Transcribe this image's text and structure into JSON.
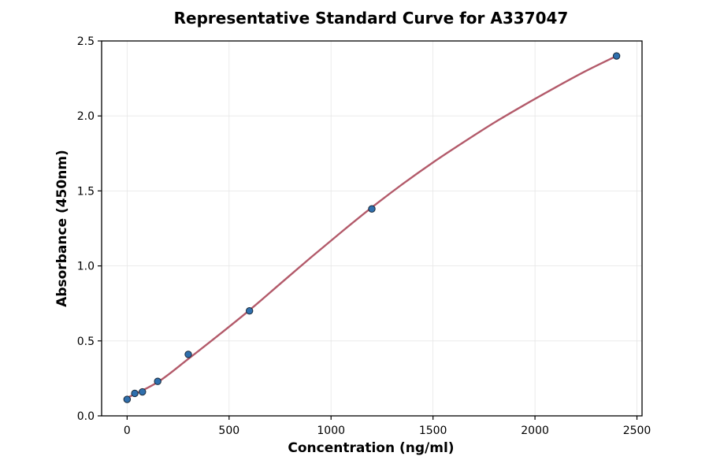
{
  "chart_data": {
    "type": "scatter",
    "title": "Representative Standard Curve for A337047",
    "xlabel": "Concentration (ng/ml)",
    "ylabel": "Absorbance (450nm)",
    "xlim": [
      -125,
      2525
    ],
    "ylim": [
      0,
      2.5
    ],
    "x_ticks": [
      0,
      500,
      1000,
      1500,
      2000,
      2500
    ],
    "y_ticks": [
      0.0,
      0.5,
      1.0,
      1.5,
      2.0,
      2.5
    ],
    "x_tick_labels": [
      "0",
      "500",
      "1000",
      "1500",
      "2000",
      "2500"
    ],
    "y_tick_labels": [
      "0.0",
      "0.5",
      "1.0",
      "1.5",
      "2.0",
      "2.5"
    ],
    "grid": true,
    "series": [
      {
        "kind": "points",
        "x": [
          0,
          37.5,
          75,
          150,
          300,
          600,
          1200,
          2400
        ],
        "y": [
          0.11,
          0.15,
          0.16,
          0.23,
          0.41,
          0.7,
          1.38,
          2.4
        ]
      },
      {
        "kind": "fit-curve",
        "x": [
          0,
          150,
          300,
          450,
          600,
          750,
          900,
          1050,
          1200,
          1350,
          1500,
          1650,
          1800,
          1950,
          2100,
          2250,
          2400
        ],
        "y": [
          0.12,
          0.225,
          0.38,
          0.54,
          0.705,
          0.88,
          1.055,
          1.225,
          1.39,
          1.545,
          1.69,
          1.825,
          1.955,
          2.075,
          2.19,
          2.3,
          2.4
        ]
      }
    ],
    "colors": {
      "points": "#2f6fad",
      "point_edge": "#1a2a3a",
      "curve": "#b35a6a",
      "grid": "#e6e6e6"
    }
  }
}
